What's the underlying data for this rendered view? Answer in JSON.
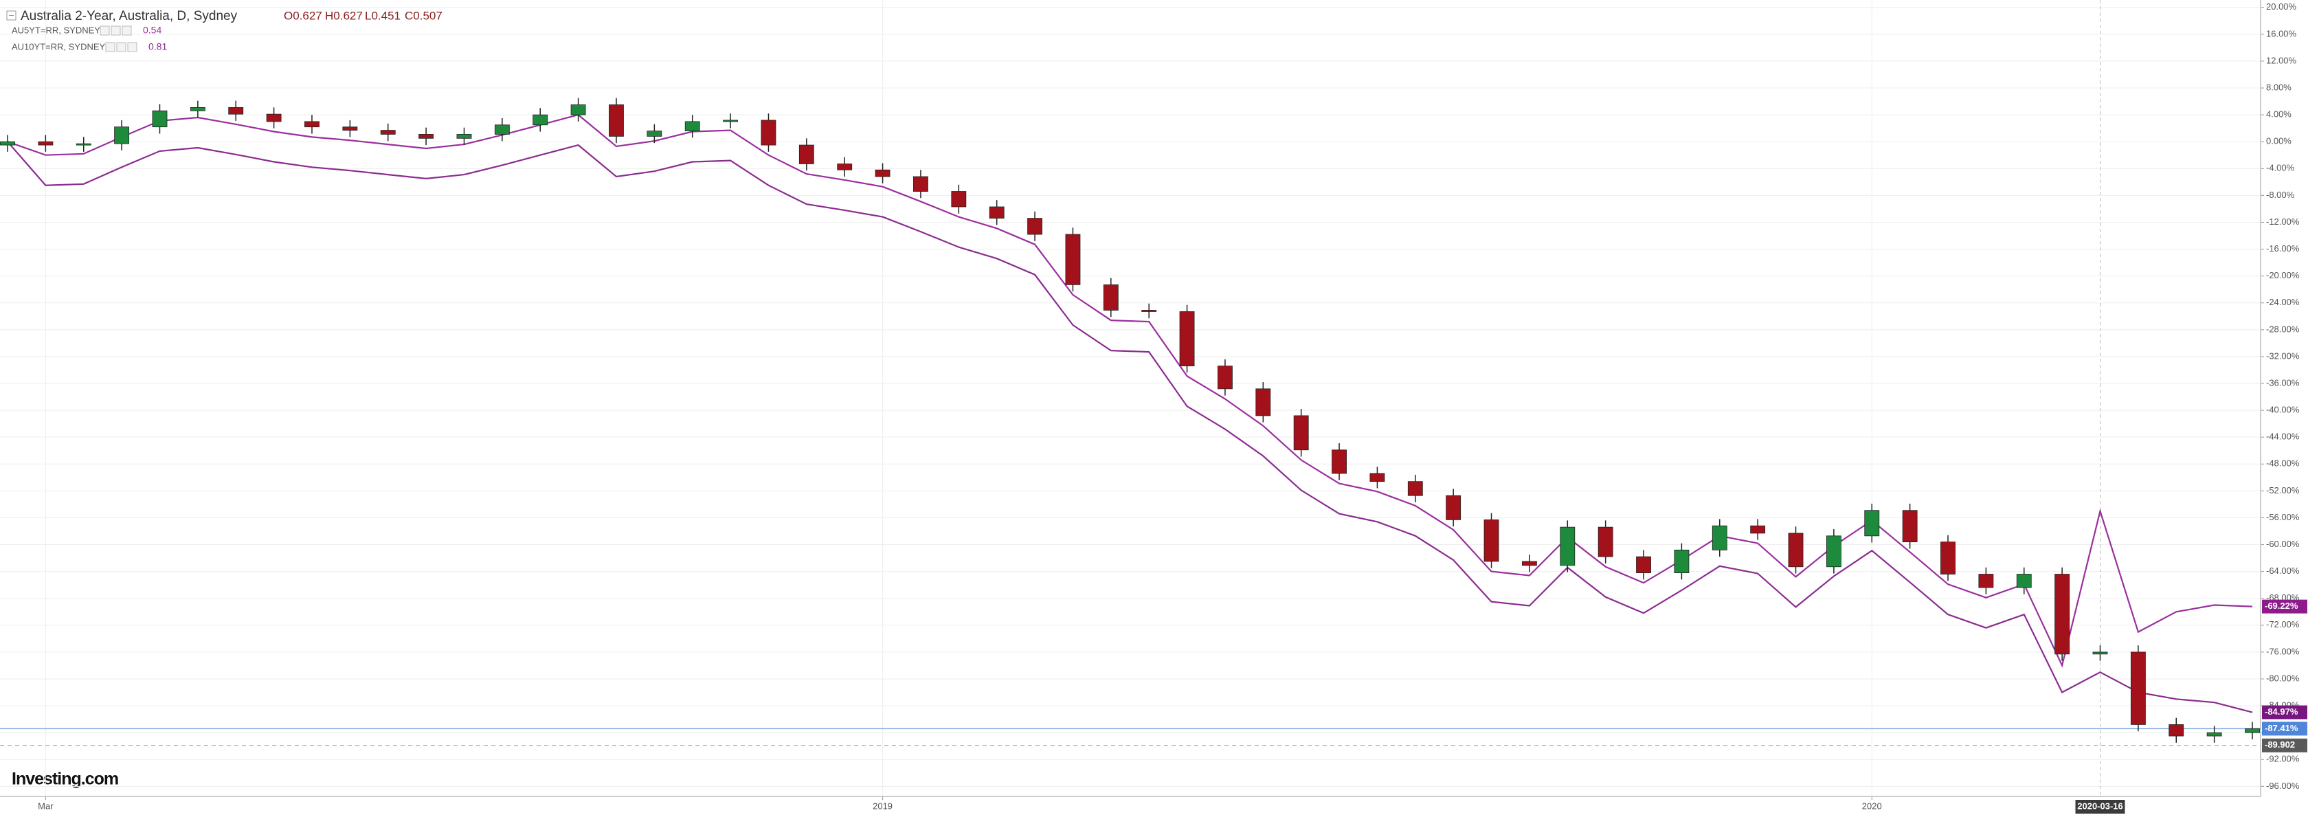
{
  "chart_data": {
    "type": "candlestick",
    "title": "Australia 2-Year, Australia, D, Sydney",
    "ohlc_labels": [
      "O0.627",
      "H0.627",
      "L0.451",
      "C0.507"
    ],
    "logo": "Investing.com",
    "categories": [
      null,
      "Mar",
      null,
      null,
      null,
      null,
      null,
      null,
      null,
      null,
      null,
      null,
      null,
      null,
      null,
      null,
      null,
      null,
      null,
      null,
      null,
      null,
      null,
      "2019",
      null,
      null,
      null,
      null,
      null,
      null,
      null,
      null,
      null,
      null,
      null,
      null,
      null,
      null,
      null,
      null,
      null,
      null,
      null,
      null,
      null,
      null,
      null,
      null,
      null,
      "2020",
      null,
      null,
      null,
      null,
      null,
      "2020-03-16",
      null,
      null,
      null,
      null
    ],
    "candles": {
      "up_color": "#1e8a3c",
      "down_color": "#a3121a",
      "open": [
        -0.5,
        0,
        -0.5,
        -0.3,
        2.2,
        4.6,
        5.1,
        4.1,
        3.0,
        2.2,
        1.7,
        1.1,
        0.5,
        1.1,
        2.5,
        4.0,
        5.5,
        0.8,
        1.6,
        3.0,
        3.2,
        -0.5,
        -3.3,
        -4.2,
        -5.2,
        -7.4,
        -9.7,
        -11.4,
        -13.8,
        -21.3,
        -25.1,
        -25.3,
        -33.4,
        -36.8,
        -40.8,
        -45.9,
        -49.4,
        -50.6,
        -52.7,
        -56.3,
        -62.5,
        -63.1,
        -57.4,
        -61.8,
        -64.2,
        -60.8,
        -57.2,
        -58.3,
        -63.3,
        -58.7,
        -54.9,
        -59.6,
        -64.4,
        -66.4,
        -64.4,
        -76.3,
        -76.0,
        -86.8,
        -88.5,
        -88.0
      ],
      "high": [
        1,
        1,
        0.7,
        3.2,
        5.6,
        6.1,
        6.1,
        5.1,
        4,
        3.2,
        2.7,
        2.1,
        2.1,
        3.5,
        5,
        6.5,
        6.5,
        2.6,
        4,
        4.2,
        4.2,
        0.5,
        -2.3,
        -3.2,
        -4.2,
        -6.4,
        -8.7,
        -10.4,
        -12.8,
        -20.3,
        -24.1,
        -24.3,
        -32.4,
        -35.8,
        -39.8,
        -44.9,
        -48.4,
        -49.6,
        -51.7,
        -55.3,
        -61.5,
        -56.4,
        -56.4,
        -60.8,
        -59.8,
        -56.2,
        -56.2,
        -57.3,
        -57.7,
        -53.9,
        -53.9,
        -58.6,
        -63.4,
        -63.4,
        -63.4,
        -75,
        -75,
        -85.8,
        -87,
        -86.41
      ],
      "low": [
        -1.5,
        -1.5,
        -1.5,
        -1.3,
        1.2,
        3.6,
        3.1,
        2,
        1.2,
        0.7,
        0.1,
        -0.5,
        -0.5,
        0.1,
        1.5,
        3,
        -0.2,
        -0.2,
        0.6,
        2,
        -1.5,
        -4.3,
        -5.2,
        -6.2,
        -8.4,
        -10.7,
        -12.4,
        -14.8,
        -22.3,
        -26.1,
        -26.3,
        -34.4,
        -37.8,
        -41.8,
        -46.9,
        -50.4,
        -51.6,
        -53.7,
        -57.3,
        -63.5,
        -64.1,
        -64.1,
        -62.8,
        -65.2,
        -65.2,
        -61.8,
        -59.3,
        -64.3,
        -64.3,
        -59.7,
        -60.6,
        -65.4,
        -67.4,
        -67.4,
        -77.3,
        -77.3,
        -87.8,
        -89.5,
        -89.5,
        -89
      ],
      "close": [
        0,
        -0.5,
        -0.3,
        2.2,
        4.6,
        5.1,
        4.1,
        3.0,
        2.2,
        1.7,
        1.1,
        0.5,
        1.1,
        2.5,
        4.0,
        5.5,
        0.8,
        1.6,
        3.0,
        3.2,
        -0.5,
        -3.3,
        -4.2,
        -5.2,
        -7.4,
        -9.7,
        -11.4,
        -13.8,
        -21.3,
        -25.1,
        -25.3,
        -33.4,
        -36.8,
        -40.8,
        -45.9,
        -49.4,
        -50.6,
        -52.7,
        -56.3,
        -62.5,
        -63.1,
        -57.4,
        -61.8,
        -64.2,
        -60.8,
        -57.2,
        -58.3,
        -63.3,
        -58.7,
        -54.9,
        -59.6,
        -64.4,
        -66.4,
        -64.4,
        -76.3,
        -76.0,
        -86.8,
        -88.5,
        -88.0,
        -87.41
      ],
      "last_label": "-87.41%",
      "last_color": "#4f86d9"
    },
    "series": [
      {
        "name": "AU5YT=RR, SYDNEY",
        "legend_value": "0.54",
        "color": "#9b2f9e",
        "label_color": "#8d1b8c",
        "last_label": "-69.22%",
        "values": [
          0,
          -2,
          -1.8,
          0.7,
          3.1,
          3.6,
          2.6,
          1.5,
          0.7,
          0.2,
          -0.4,
          -1,
          -0.4,
          1,
          2.5,
          4,
          -0.7,
          0.1,
          1.5,
          1.7,
          -2,
          -4.8,
          -5.7,
          -6.7,
          -8.9,
          -11.2,
          -12.9,
          -15.3,
          -22.8,
          -26.6,
          -26.8,
          -34.9,
          -38.3,
          -42.3,
          -47.4,
          -50.9,
          -52.1,
          -54.2,
          -57.8,
          -64,
          -64.6,
          -58.9,
          -63.3,
          -65.7,
          -62.3,
          -58.7,
          -59.8,
          -64.8,
          -60.2,
          -56.4,
          -61.1,
          -65.9,
          -67.9,
          -65.9,
          -78,
          -55,
          -73,
          -70,
          -69,
          -69.22
        ]
      },
      {
        "name": "AU10YT=RR, SYDNEY",
        "legend_value": "0.81",
        "color": "#8a2b90",
        "label_color": "#76167e",
        "last_label": "-84.97%",
        "values": [
          0,
          -6.5,
          -6.3,
          -3.8,
          -1.4,
          -0.9,
          -1.9,
          -3,
          -3.8,
          -4.3,
          -4.9,
          -5.5,
          -4.9,
          -3.5,
          -2,
          -0.5,
          -5.2,
          -4.4,
          -3,
          -2.8,
          -6.5,
          -9.3,
          -10.2,
          -11.2,
          -13.4,
          -15.7,
          -17.4,
          -19.8,
          -27.3,
          -31.1,
          -31.3,
          -39.4,
          -42.8,
          -46.8,
          -51.9,
          -55.4,
          -56.6,
          -58.7,
          -62.3,
          -68.5,
          -69.1,
          -63.4,
          -67.8,
          -70.2,
          -66.8,
          -63.2,
          -64.3,
          -69.3,
          -64.7,
          -60.9,
          -65.6,
          -70.4,
          -72.4,
          -70.4,
          -82,
          -79,
          -82,
          -83,
          -83.5,
          -84.97
        ]
      }
    ],
    "reference_line": -89.902,
    "ylim": [
      -97.5,
      21.1
    ],
    "yticks": [
      {
        "value": 20,
        "label": "20.00%"
      },
      {
        "value": 16,
        "label": "16.00%"
      },
      {
        "value": 12,
        "label": "12.00%"
      },
      {
        "value": 8,
        "label": "8.00%"
      },
      {
        "value": 4,
        "label": "4.00%"
      },
      {
        "value": 0,
        "label": "0.00%"
      },
      {
        "value": -4,
        "label": "-4.00%"
      },
      {
        "value": -8,
        "label": "-8.00%"
      },
      {
        "value": -12,
        "label": "-12.00%"
      },
      {
        "value": -16,
        "label": "-16.00%"
      },
      {
        "value": -20,
        "label": "-20.00%"
      },
      {
        "value": -24,
        "label": "-24.00%"
      },
      {
        "value": -28,
        "label": "-28.00%"
      },
      {
        "value": -32,
        "label": "-32.00%"
      },
      {
        "value": -36,
        "label": "-36.00%"
      },
      {
        "value": -40,
        "label": "-40.00%"
      },
      {
        "value": -44,
        "label": "-44.00%"
      },
      {
        "value": -48,
        "label": "-48.00%"
      },
      {
        "value": -52,
        "label": "-52.00%"
      },
      {
        "value": -56,
        "label": "-56.00%"
      },
      {
        "value": -60,
        "label": "-60.00%"
      },
      {
        "value": -64,
        "label": "-64.00%"
      },
      {
        "value": -68,
        "label": "-68.00%"
      },
      {
        "value": -72,
        "label": "-72.00%"
      },
      {
        "value": -76,
        "label": "-76.00%"
      },
      {
        "value": -80,
        "label": "-80.00%"
      },
      {
        "value": -84,
        "label": "-84.00%"
      },
      {
        "value": -88,
        "label": "-88.00%"
      },
      {
        "value": -92,
        "label": "-92.00%"
      },
      {
        "value": -96,
        "label": "-96.00%"
      }
    ],
    "grid": true
  }
}
